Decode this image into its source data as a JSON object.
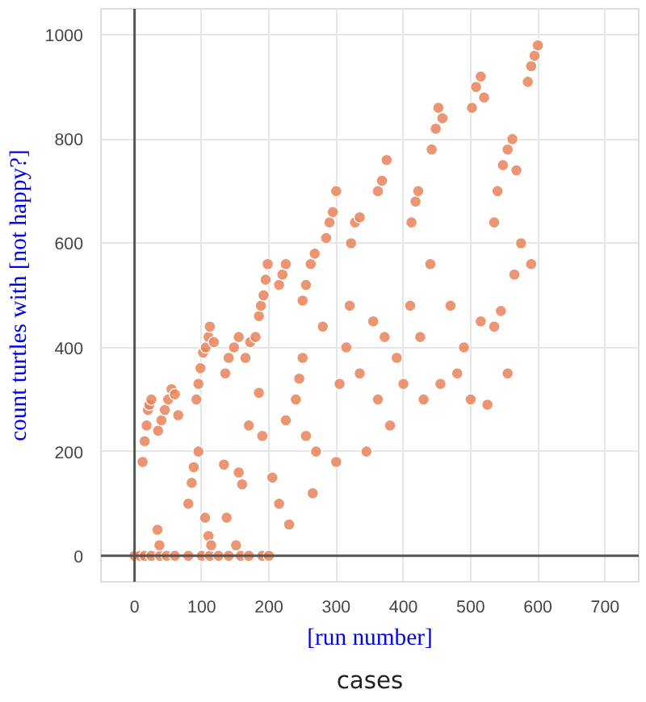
{
  "chart_data": {
    "type": "scatter",
    "xlabel": "[run number]",
    "ylabel": "count turtles with [not happy?]",
    "annotations": [
      "cases"
    ],
    "xlim": [
      -50,
      750
    ],
    "ylim": [
      -50,
      1050
    ],
    "xticks": [
      0,
      100,
      200,
      300,
      400,
      500,
      600,
      700
    ],
    "yticks": [
      0,
      200,
      400,
      600,
      800,
      1000
    ],
    "grid": true,
    "marker": "circle",
    "series": [
      {
        "color": "#e8825a",
        "x": [
          0,
          8,
          15,
          25,
          38,
          48,
          60,
          80,
          100,
          112,
          125,
          140,
          158,
          170,
          190,
          200,
          12,
          15,
          18,
          20,
          22,
          25,
          35,
          40,
          45,
          50,
          55,
          60,
          65,
          92,
          95,
          98,
          102,
          106,
          110,
          112,
          118,
          135,
          140,
          148,
          155,
          165,
          172,
          180,
          185,
          188,
          192,
          195,
          198,
          215,
          220,
          225,
          250,
          255,
          262,
          268,
          285,
          290,
          295,
          300,
          322,
          328,
          335,
          362,
          368,
          375,
          412,
          418,
          422,
          442,
          448,
          452,
          458,
          502,
          508,
          515,
          520,
          585,
          590,
          595,
          600,
          535,
          540,
          548,
          555,
          562,
          568,
          34,
          37,
          80,
          85,
          88,
          95,
          105,
          110,
          114,
          133,
          137,
          151,
          155,
          160,
          170,
          185,
          190,
          205,
          215,
          225,
          245,
          255,
          230,
          240,
          250,
          265,
          270,
          280,
          300,
          305,
          315,
          320,
          335,
          345,
          355,
          362,
          372,
          380,
          390,
          400,
          410,
          425,
          430,
          440,
          455,
          470,
          480,
          490,
          500,
          515,
          525,
          535,
          545,
          555,
          565,
          575,
          590
        ],
        "values": [
          0,
          0,
          0,
          0,
          0,
          0,
          0,
          0,
          0,
          0,
          0,
          0,
          0,
          0,
          0,
          0,
          180,
          220,
          250,
          280,
          290,
          300,
          240,
          260,
          280,
          300,
          320,
          310,
          270,
          300,
          330,
          360,
          390,
          400,
          420,
          440,
          410,
          350,
          380,
          400,
          420,
          380,
          410,
          420,
          460,
          480,
          500,
          530,
          560,
          520,
          540,
          560,
          490,
          520,
          560,
          580,
          610,
          640,
          660,
          700,
          600,
          640,
          650,
          700,
          720,
          760,
          640,
          680,
          700,
          780,
          820,
          860,
          840,
          860,
          900,
          920,
          880,
          910,
          940,
          960,
          980,
          640,
          700,
          750,
          780,
          800,
          740,
          50,
          20,
          100,
          140,
          170,
          200,
          73,
          38,
          20,
          175,
          73,
          20,
          160,
          137,
          250,
          313,
          230,
          150,
          100,
          260,
          340,
          230,
          60,
          300,
          380,
          120,
          200,
          440,
          180,
          330,
          400,
          480,
          350,
          200,
          450,
          300,
          420,
          250,
          380,
          330,
          480,
          420,
          300,
          560,
          330,
          480,
          350,
          400,
          300,
          450,
          290,
          440,
          470,
          350,
          540,
          600,
          560
        ]
      }
    ]
  }
}
